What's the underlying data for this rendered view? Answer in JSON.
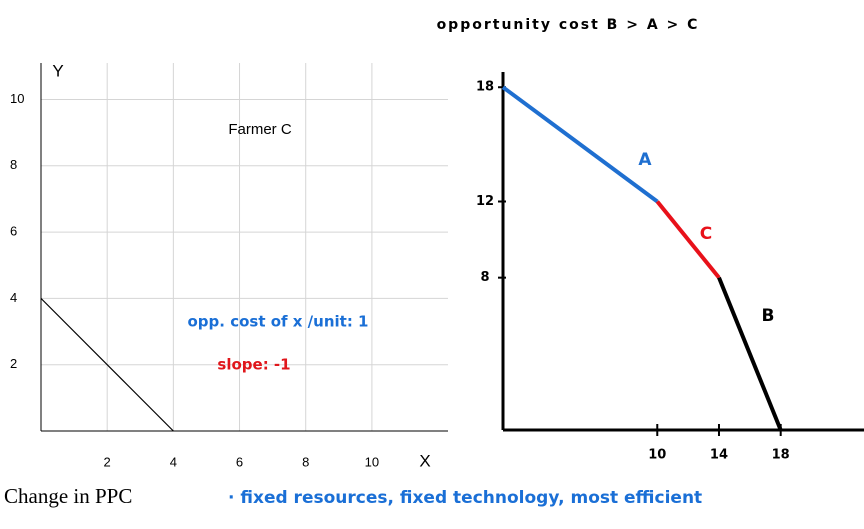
{
  "chart_data": [
    {
      "type": "line",
      "title": "Farmer C",
      "x_label": "X",
      "y_label": "Y",
      "xlim": [
        0,
        12.3
      ],
      "ylim": [
        0,
        11.1
      ],
      "xticks": [
        2,
        4,
        6,
        8,
        10
      ],
      "yticks": [
        2,
        4,
        6,
        8,
        10
      ],
      "grid": true,
      "series": [
        {
          "color": "#000000",
          "x": [
            0,
            4
          ],
          "values": [
            4,
            0
          ]
        }
      ],
      "annotations": [
        {
          "text": "opp. cost of x /unit: 1",
          "color": "#1a6fd6"
        },
        {
          "text": "slope: -1",
          "color": "#e0161b"
        }
      ]
    },
    {
      "type": "line",
      "title": "opportunity cost B > A > C",
      "xlim": [
        0,
        23.4
      ],
      "ylim": [
        0,
        18.8
      ],
      "xticks": [
        10,
        14,
        18
      ],
      "yticks": [
        18,
        12,
        8
      ],
      "grid": false,
      "series": [
        {
          "name": "A",
          "color": "#1f6fd0",
          "x": [
            0,
            10
          ],
          "values": [
            18,
            12
          ]
        },
        {
          "name": "C",
          "color": "#e8111a",
          "x": [
            10,
            14
          ],
          "values": [
            12,
            8
          ]
        },
        {
          "name": "B",
          "color": "#000000",
          "x": [
            14,
            18
          ],
          "values": [
            8,
            0
          ]
        }
      ]
    }
  ],
  "notes": {
    "heading": "Change in PPC",
    "bullet": "· fixed resources, fixed technology, most efficient"
  }
}
